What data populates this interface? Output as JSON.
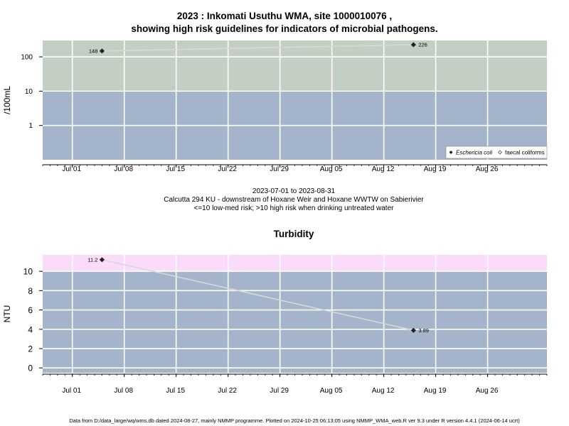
{
  "figure": {
    "title_line1": "2023 : Inkomati Usuthu WMA, site 1000010076 ,",
    "title_line2": "showing high risk guidelines for indicators of microbial pathogens.",
    "date_range": "2023-07-01 to 2023-08-31",
    "site_description": "Calcutta 294 KU - downstream of Hoxane Weir and Hoxane WWTW on Sabierivier",
    "risk_note": "<=10 low-med risk; >10 high risk when drinking untreated water",
    "footer": "Data from D:/data_large/wq/wms.db dated 2024-08-27, mainly NMMP programme. Plotted on 2024-10-25 06:13:05 using NMMP_WMA_web.R ver 9.3 under R version 4.4.1 (2024-06-14 ucrt)"
  },
  "colors": {
    "low_risk_band": "#a3b4cb",
    "high_risk_band_micro": "#c2cfc2",
    "high_risk_band_turbidity": "#fadcfa",
    "gridline": "#ffffff",
    "series_line": "#d8d8d8",
    "point": "#222222"
  },
  "chart_data": [
    {
      "type": "line",
      "title": "",
      "xlabel": "",
      "ylabel": "/100mL",
      "y_scale": "log10",
      "ylim": [
        0.1,
        300
      ],
      "xlim": [
        "2023-06-27",
        "2023-09-03"
      ],
      "threshold": 10,
      "y_ticks": [
        "1",
        "10",
        "100"
      ],
      "x_ticks": [
        "Jul 01",
        "Jul 08",
        "Jul 15",
        "Jul 22",
        "Jul 29",
        "Aug 05",
        "Aug 12",
        "Aug 19",
        "Aug 26"
      ],
      "x_tick_dates": [
        "2023-07-01",
        "2023-07-08",
        "2023-07-15",
        "2023-07-22",
        "2023-07-29",
        "2023-08-05",
        "2023-08-12",
        "2023-08-19",
        "2023-08-26"
      ],
      "grid": true,
      "legend_position": "bottom-right",
      "legend": [
        "Eschericia coli",
        "faecal coliforms"
      ],
      "series": [
        {
          "name": "Eschericia coli",
          "marker": "filled-diamond",
          "points": [
            {
              "x": "2023-07-05",
              "y": 148,
              "label": "148"
            },
            {
              "x": "2023-08-16",
              "y": 226,
              "label": "226"
            }
          ]
        }
      ]
    },
    {
      "type": "line",
      "title": "Turbidity",
      "xlabel": "",
      "ylabel": "NTU",
      "y_scale": "linear",
      "ylim": [
        -0.5,
        11.7
      ],
      "xlim": [
        "2023-06-27",
        "2023-09-03"
      ],
      "threshold": 10,
      "y_ticks": [
        "0",
        "2",
        "4",
        "6",
        "8",
        "10"
      ],
      "x_ticks": [
        "Jul 01",
        "Jul 08",
        "Jul 15",
        "Jul 22",
        "Jul 29",
        "Aug 05",
        "Aug 12",
        "Aug 19",
        "Aug 26"
      ],
      "x_tick_dates": [
        "2023-07-01",
        "2023-07-08",
        "2023-07-15",
        "2023-07-22",
        "2023-07-29",
        "2023-08-05",
        "2023-08-12",
        "2023-08-19",
        "2023-08-26"
      ],
      "grid": true,
      "series": [
        {
          "name": "",
          "marker": "filled-diamond",
          "points": [
            {
              "x": "2023-07-05",
              "y": 11.2,
              "label": "11.2"
            },
            {
              "x": "2023-08-16",
              "y": 3.89,
              "label": "3.89"
            }
          ]
        }
      ]
    }
  ]
}
